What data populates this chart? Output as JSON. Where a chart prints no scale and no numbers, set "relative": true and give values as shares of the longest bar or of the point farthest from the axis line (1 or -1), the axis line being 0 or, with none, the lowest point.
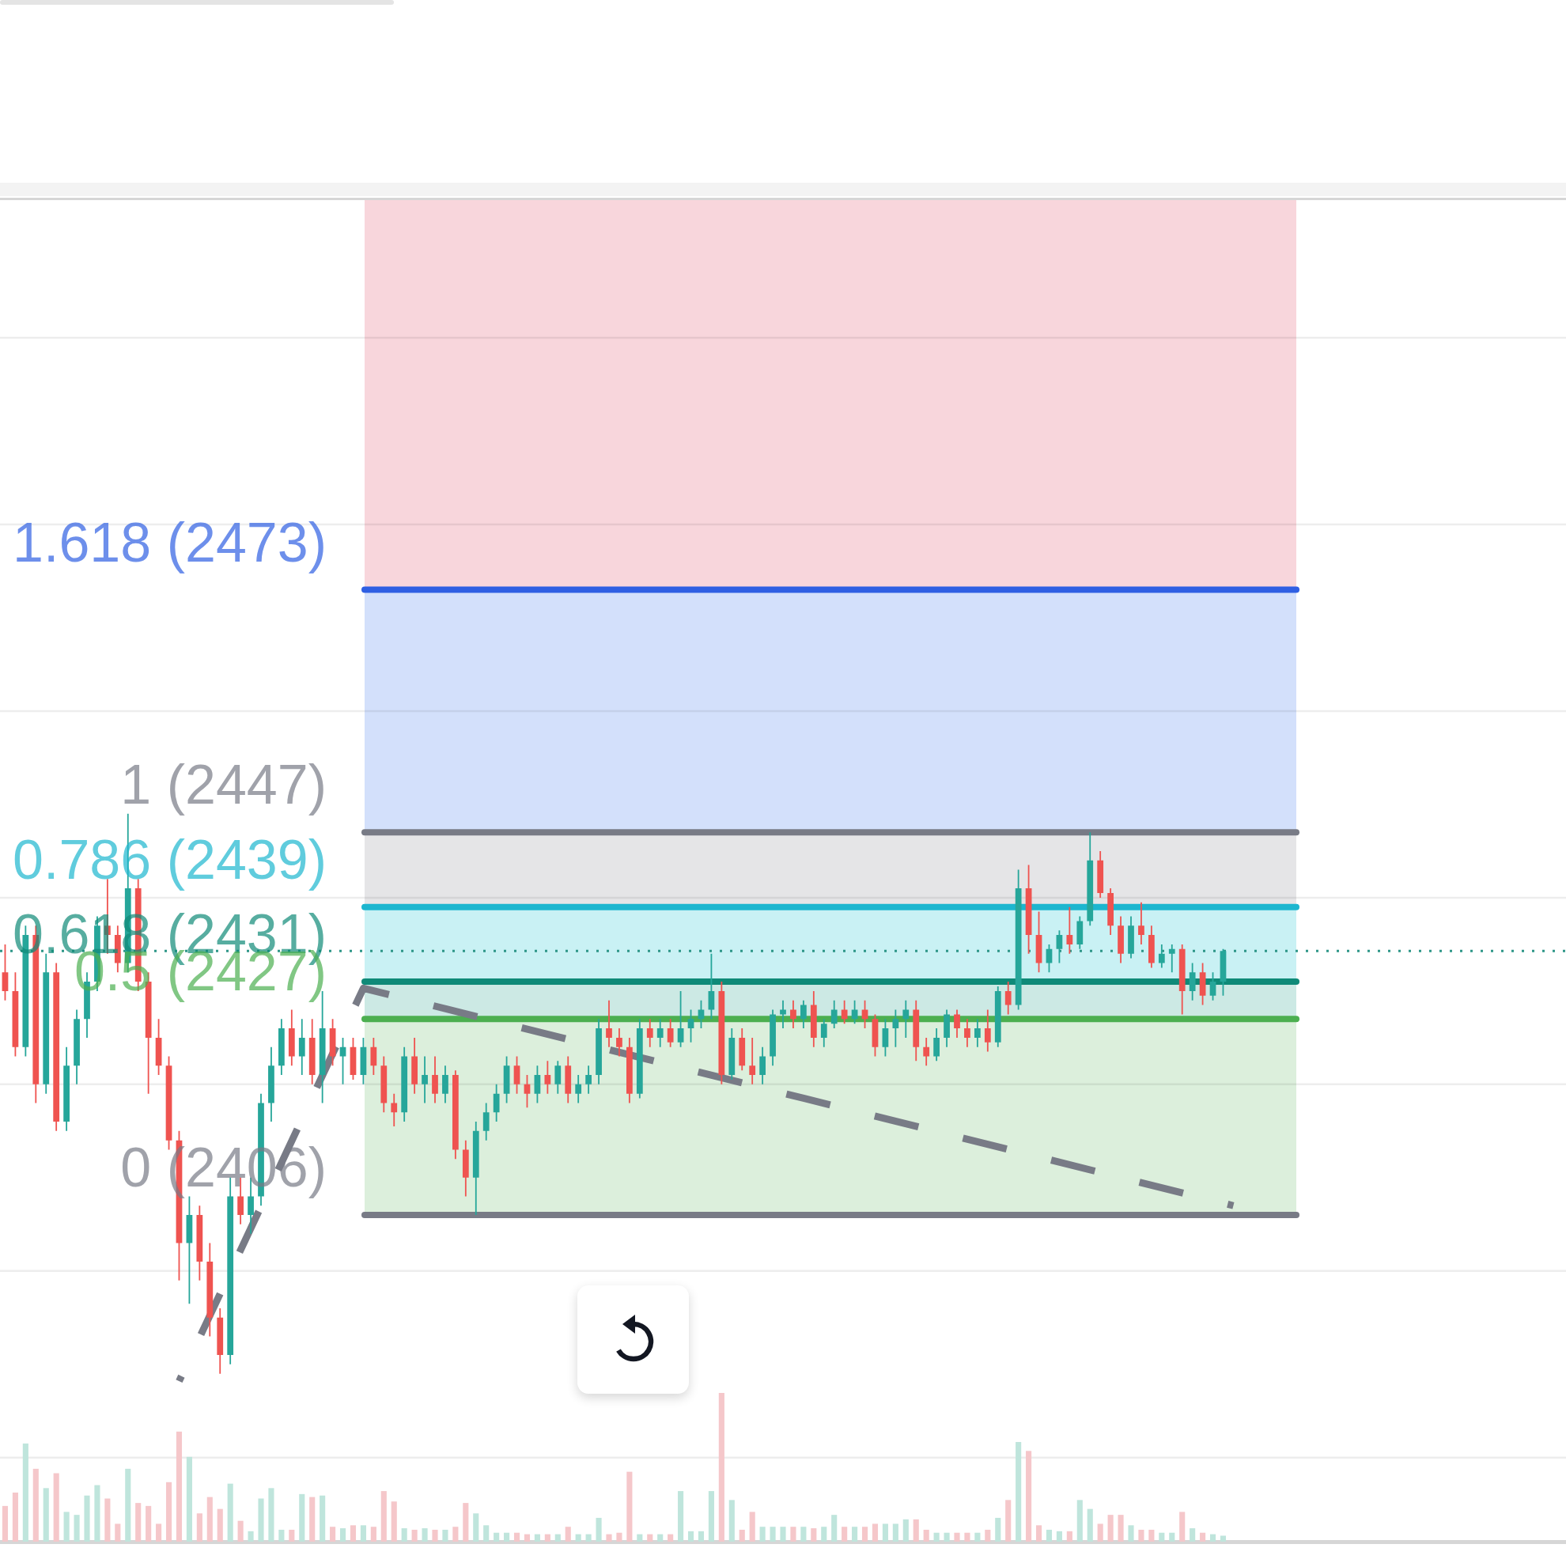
{
  "chart_data": [
    {
      "type": "candlestick",
      "categories": [
        null,
        null,
        null,
        null,
        null,
        null,
        null,
        null,
        null,
        null,
        null,
        null,
        null,
        null,
        null,
        null,
        null,
        null,
        null,
        null,
        null,
        null,
        null,
        null,
        null,
        null,
        null,
        null,
        null,
        null,
        null,
        null,
        null,
        null,
        null,
        null,
        null,
        null,
        null,
        null,
        null,
        null,
        null,
        null,
        null,
        null,
        null,
        null,
        null,
        null,
        null,
        null,
        null,
        null,
        null,
        null,
        null,
        null,
        null,
        null,
        null,
        null,
        null,
        null,
        null,
        null,
        null,
        null,
        null,
        null,
        null,
        null,
        null,
        null,
        null,
        null,
        null,
        null,
        null,
        null,
        null,
        null,
        null,
        null,
        null,
        null,
        null,
        null,
        null,
        null,
        null,
        null,
        null,
        null,
        null,
        null,
        null,
        null,
        null,
        null,
        null,
        null,
        null,
        null,
        null,
        null,
        null,
        null,
        null,
        null,
        null,
        null,
        null,
        null,
        null,
        null,
        null,
        null,
        null,
        null,
        null,
        null,
        null,
        null,
        null,
        null,
        null,
        null,
        null,
        null,
        null,
        null,
        null,
        null,
        null,
        null,
        null,
        null,
        null,
        null,
        null,
        null,
        null,
        null,
        null,
        null,
        null,
        null,
        null,
        null,
        null,
        null,
        null
      ],
      "ohlc": [
        [
          2432,
          2435,
          2429,
          2430
        ],
        [
          2430,
          2432,
          2423,
          2424
        ],
        [
          2424,
          2437,
          2423,
          2436
        ],
        [
          2436,
          2437,
          2418,
          2420
        ],
        [
          2420,
          2434,
          2419,
          2432
        ],
        [
          2432,
          2433,
          2415,
          2416
        ],
        [
          2416,
          2424,
          2415,
          2422
        ],
        [
          2422,
          2428,
          2420,
          2427
        ],
        [
          2427,
          2432,
          2425,
          2431
        ],
        [
          2431,
          2438,
          2430,
          2437
        ],
        [
          2437,
          2442,
          2434,
          2436
        ],
        [
          2436,
          2437,
          2432,
          2433
        ],
        [
          2433,
          2449,
          2432,
          2441
        ],
        [
          2441,
          2442,
          2430,
          2431
        ],
        [
          2431,
          2432,
          2419,
          2425
        ],
        [
          2425,
          2427,
          2421,
          2422
        ],
        [
          2422,
          2423,
          2413,
          2414
        ],
        [
          2414,
          2415,
          2399,
          2403
        ],
        [
          2403,
          2408,
          2396.5,
          2406
        ],
        [
          2406,
          2407,
          2399,
          2401
        ],
        [
          2401,
          2403,
          2393,
          2395
        ],
        [
          2395,
          2396,
          2389,
          2391
        ],
        [
          2391,
          2410,
          2390,
          2408
        ],
        [
          2408,
          2410,
          2405,
          2406
        ],
        [
          2406,
          2410,
          2404,
          2408
        ],
        [
          2408,
          2419,
          2407,
          2418
        ],
        [
          2418,
          2424,
          2416,
          2422
        ],
        [
          2422,
          2427,
          2421,
          2426
        ],
        [
          2426,
          2428,
          2422,
          2423
        ],
        [
          2423,
          2427,
          2421,
          2425
        ],
        [
          2425,
          2427,
          2420,
          2421
        ],
        [
          2421,
          2430,
          2418,
          2426
        ],
        [
          2426,
          2427,
          2422,
          2423
        ],
        [
          2423,
          2425,
          2420,
          2424
        ],
        [
          2424,
          2425,
          2420.5,
          2421
        ],
        [
          2421,
          2425,
          2420,
          2424
        ],
        [
          2424,
          2425,
          2421,
          2422
        ],
        [
          2422,
          2423,
          2417,
          2418
        ],
        [
          2418,
          2419,
          2415.5,
          2417
        ],
        [
          2417,
          2424,
          2416,
          2423
        ],
        [
          2423,
          2425,
          2419,
          2420
        ],
        [
          2420,
          2423,
          2418,
          2421
        ],
        [
          2421,
          2423,
          2418,
          2419
        ],
        [
          2419,
          2422,
          2418,
          2421
        ],
        [
          2421,
          2421.5,
          2412,
          2413
        ],
        [
          2413,
          2414,
          2408,
          2410
        ],
        [
          2410,
          2416,
          2406,
          2415
        ],
        [
          2415,
          2418,
          2414,
          2417
        ],
        [
          2417,
          2420,
          2416,
          2419
        ],
        [
          2419,
          2423,
          2418,
          2422
        ],
        [
          2422,
          2423,
          2419,
          2420
        ],
        [
          2420,
          2421,
          2417.5,
          2419
        ],
        [
          2419,
          2422,
          2418,
          2421
        ],
        [
          2421,
          2422.5,
          2419,
          2420
        ],
        [
          2420,
          2422.5,
          2419,
          2422
        ],
        [
          2422,
          2423,
          2418,
          2419
        ],
        [
          2419,
          2421,
          2418,
          2420
        ],
        [
          2420,
          2422,
          2419,
          2421
        ],
        [
          2421,
          2427,
          2420,
          2426
        ],
        [
          2426,
          2429,
          2424,
          2425
        ],
        [
          2425,
          2426,
          2423,
          2424
        ],
        [
          2424,
          2425,
          2418,
          2419
        ],
        [
          2419,
          2427,
          2418.5,
          2426
        ],
        [
          2426,
          2427,
          2424,
          2425
        ],
        [
          2425,
          2427,
          2424,
          2426
        ],
        [
          2426,
          2427,
          2424,
          2424.5
        ],
        [
          2424.5,
          2430,
          2424,
          2426
        ],
        [
          2426,
          2428,
          2424.5,
          2427
        ],
        [
          2427,
          2429,
          2426,
          2428
        ],
        [
          2428,
          2434,
          2427,
          2430
        ],
        [
          2430,
          2431,
          2420,
          2421
        ],
        [
          2421,
          2426,
          2420.5,
          2425
        ],
        [
          2425,
          2426,
          2421.5,
          2422
        ],
        [
          2422,
          2425,
          2420,
          2421
        ],
        [
          2421,
          2424,
          2420,
          2423
        ],
        [
          2423,
          2428,
          2422,
          2427.5
        ],
        [
          2427.5,
          2429,
          2426,
          2428
        ],
        [
          2428,
          2429,
          2426,
          2427
        ],
        [
          2427,
          2429,
          2426,
          2428.5
        ],
        [
          2428.5,
          2430,
          2424,
          2425
        ],
        [
          2425,
          2427,
          2424,
          2426.5
        ],
        [
          2426.5,
          2429,
          2426,
          2428
        ],
        [
          2428,
          2429,
          2426.5,
          2427
        ],
        [
          2427,
          2429,
          2426.5,
          2428
        ],
        [
          2428,
          2429,
          2426,
          2427
        ],
        [
          2427,
          2427.5,
          2423,
          2424
        ],
        [
          2424,
          2427,
          2423,
          2426
        ],
        [
          2426,
          2428,
          2424,
          2427
        ],
        [
          2427,
          2429,
          2425,
          2428
        ],
        [
          2428,
          2429,
          2422.5,
          2424
        ],
        [
          2424,
          2425,
          2422,
          2423
        ],
        [
          2423,
          2426,
          2422.5,
          2425
        ],
        [
          2425,
          2428,
          2424,
          2427.5
        ],
        [
          2427.5,
          2428,
          2425,
          2426
        ],
        [
          2426,
          2427,
          2424,
          2425
        ],
        [
          2425,
          2427,
          2424,
          2426
        ],
        [
          2426,
          2428,
          2423.5,
          2424.5
        ],
        [
          2424.5,
          2430.5,
          2424,
          2430
        ],
        [
          2430,
          2431,
          2427.5,
          2428.5
        ],
        [
          2428.5,
          2443,
          2428,
          2441
        ],
        [
          2441,
          2443.5,
          2434,
          2436
        ],
        [
          2436,
          2438.5,
          2432,
          2433
        ],
        [
          2433,
          2435,
          2432,
          2434.5
        ],
        [
          2434.5,
          2436.5,
          2433,
          2436
        ],
        [
          2436,
          2439,
          2434,
          2435
        ],
        [
          2435,
          2438,
          2434.5,
          2437.5
        ],
        [
          2437.5,
          2447,
          2437,
          2444
        ],
        [
          2444,
          2445,
          2440,
          2440.5
        ],
        [
          2440.5,
          2441,
          2436,
          2437
        ],
        [
          2437,
          2438,
          2433,
          2434
        ],
        [
          2434,
          2438,
          2433.5,
          2437
        ],
        [
          2437,
          2439.5,
          2435,
          2436
        ],
        [
          2436,
          2437,
          2432.5,
          2433
        ],
        [
          2433,
          2435,
          2432.5,
          2434
        ],
        [
          2434,
          2435,
          2432,
          2434.5
        ],
        [
          2434.5,
          2435,
          2427.5,
          2430
        ],
        [
          2430,
          2433,
          2429,
          2432
        ],
        [
          2432,
          2433,
          2428.5,
          2429.5
        ],
        [
          2429.5,
          2432,
          2429,
          2431
        ],
        [
          2431,
          2434.5,
          2429.5,
          2434.3
        ],
        null,
        null,
        null,
        null,
        null,
        null,
        null,
        null,
        null,
        null,
        null,
        null,
        null,
        null,
        null,
        null,
        null,
        null,
        null,
        null,
        null,
        null,
        null,
        null,
        null,
        null,
        null,
        null,
        null,
        null,
        null,
        null,
        null
      ],
      "colors": [
        "#ef5350",
        "#ef5350",
        "#26a69a",
        "#ef5350",
        "#26a69a",
        "#ef5350",
        "#26a69a",
        "#26a69a",
        "#26a69a",
        "#26a69a",
        "#ef5350",
        "#ef5350",
        "#26a69a",
        "#ef5350",
        "#ef5350",
        "#ef5350",
        "#ef5350",
        "#ef5350",
        "#26a69a",
        "#ef5350",
        "#ef5350",
        "#ef5350",
        "#26a69a",
        "#ef5350",
        "#26a69a",
        "#26a69a",
        "#26a69a",
        "#26a69a",
        "#ef5350",
        "#26a69a",
        "#ef5350",
        "#26a69a",
        "#ef5350",
        "#26a69a",
        "#ef5350",
        "#26a69a",
        "#ef5350",
        "#ef5350",
        "#ef5350",
        "#26a69a",
        "#ef5350",
        "#26a69a",
        "#ef5350",
        "#26a69a",
        "#ef5350",
        "#ef5350",
        "#26a69a",
        "#26a69a",
        "#26a69a",
        "#26a69a",
        "#ef5350",
        "#ef5350",
        "#26a69a",
        "#ef5350",
        "#26a69a",
        "#ef5350",
        "#26a69a",
        "#26a69a",
        "#26a69a",
        "#ef5350",
        "#ef5350",
        "#ef5350",
        "#26a69a",
        "#ef5350",
        "#26a69a",
        "#ef5350",
        "#26a69a",
        "#26a69a",
        "#26a69a",
        "#26a69a",
        "#ef5350",
        "#26a69a",
        "#ef5350",
        "#ef5350",
        "#26a69a",
        "#26a69a",
        "#26a69a",
        "#ef5350",
        "#26a69a",
        "#ef5350",
        "#26a69a",
        "#26a69a",
        "#ef5350",
        "#26a69a",
        "#ef5350",
        "#ef5350",
        "#26a69a",
        "#26a69a",
        "#26a69a",
        "#ef5350",
        "#ef5350",
        "#26a69a",
        "#26a69a",
        "#ef5350",
        "#ef5350",
        "#26a69a",
        "#ef5350",
        "#26a69a",
        "#ef5350",
        "#26a69a",
        "#ef5350",
        "#ef5350",
        "#26a69a",
        "#26a69a",
        "#ef5350",
        "#26a69a",
        "#26a69a",
        "#ef5350",
        "#ef5350",
        "#ef5350",
        "#26a69a",
        "#ef5350",
        "#ef5350",
        "#26a69a",
        "#26a69a",
        "#ef5350",
        "#26a69a",
        "#ef5350",
        "#26a69a",
        "#26a69a",
        null,
        null,
        null,
        null,
        null,
        null,
        null,
        null,
        null,
        null,
        null,
        null,
        null,
        null,
        null,
        null,
        null,
        null,
        null,
        null,
        null,
        null,
        null,
        null,
        null,
        null,
        null,
        null,
        null,
        null,
        null,
        null,
        null
      ],
      "series": [
        {
          "type": "line",
          "color": "#787b86",
          "line_style": "dashed",
          "values": [
            null,
            null,
            null,
            null,
            null,
            null,
            null,
            null,
            null,
            null,
            null,
            null,
            null,
            null,
            null,
            null,
            null,
            2388.2,
            null,
            null,
            null,
            null,
            null,
            null,
            null,
            null,
            null,
            null,
            null,
            null,
            null,
            null,
            null,
            null,
            null,
            2430.3,
            null,
            null,
            null,
            null,
            null,
            null,
            null,
            null,
            null,
            null,
            null,
            null,
            null,
            null,
            null,
            null,
            null,
            null,
            null,
            null,
            null,
            null,
            null,
            null,
            null,
            null,
            null,
            null,
            null,
            null,
            null,
            null,
            null,
            null,
            null,
            null,
            null,
            null,
            null,
            null,
            null,
            null,
            null,
            null,
            null,
            null,
            null,
            null,
            null,
            null,
            null,
            null,
            null,
            null,
            null,
            null,
            null,
            null,
            null,
            null,
            null,
            null,
            null,
            null,
            null,
            null,
            null,
            null,
            null,
            null,
            null,
            null,
            null,
            null,
            null,
            null,
            null,
            null,
            null,
            null,
            null,
            null,
            null,
            null,
            2407,
            null,
            null,
            null,
            null,
            null,
            null,
            null,
            null,
            null,
            null,
            null,
            null,
            null,
            null,
            null,
            null,
            null,
            null,
            null,
            null,
            null,
            null,
            null,
            null,
            null,
            null,
            null,
            null,
            null,
            null,
            null,
            null
          ]
        }
      ],
      "ylim": [
        2371,
        2515
      ],
      "yticks": [
        {
          "value": 2380,
          "label": null
        },
        {
          "value": 2400,
          "label": null
        },
        {
          "value": 2420,
          "label": null
        },
        {
          "value": 2440,
          "label": null
        },
        {
          "value": 2460,
          "label": null
        },
        {
          "value": 2480,
          "label": null
        },
        {
          "value": 2500,
          "label": null
        }
      ],
      "grid": "y",
      "bands": [
        {
          "axis": "y",
          "from": 2473,
          "to": 2515,
          "color": "#f8d6dc"
        },
        {
          "axis": "y",
          "from": 2447,
          "to": 2473,
          "color": "#d3e0fb"
        },
        {
          "axis": "y",
          "from": 2439,
          "to": 2447,
          "color": "#e5e5e7"
        },
        {
          "axis": "y",
          "from": 2431,
          "to": 2439,
          "color": "#c9f1f4"
        },
        {
          "axis": "y",
          "from": 2427,
          "to": 2431,
          "color": "#cce9e4"
        },
        {
          "axis": "y",
          "from": 2406,
          "to": 2427,
          "color": "#dcefdc"
        }
      ],
      "ref_lines": [
        {
          "axis": "y",
          "value": 2473,
          "label": "1.618 (2473)",
          "color": "#2f5fe3"
        },
        {
          "axis": "y",
          "value": 2447,
          "label": "1 (2447)",
          "color": "#787b86"
        },
        {
          "axis": "y",
          "value": 2439,
          "label": "0.786 (2439)",
          "color": "#1db6cf"
        },
        {
          "axis": "y",
          "value": 2431,
          "label": "0.618 (2431)",
          "color": "#0f8a78"
        },
        {
          "axis": "y",
          "value": 2427,
          "label": "0.5 (2427)",
          "color": "#4caf50"
        },
        {
          "axis": "y",
          "value": 2406,
          "label": "0 (2406)",
          "color": "#787b86"
        },
        {
          "axis": "y",
          "value": 2434.3,
          "color": "#2e9688",
          "line_style": "dotted"
        }
      ]
    },
    {
      "type": "bar",
      "relative": true,
      "categories": [
        null,
        null,
        null,
        null,
        null,
        null,
        null,
        null,
        null,
        null,
        null,
        null,
        null,
        null,
        null,
        null,
        null,
        null,
        null,
        null,
        null,
        null,
        null,
        null,
        null,
        null,
        null,
        null,
        null,
        null,
        null,
        null,
        null,
        null,
        null,
        null,
        null,
        null,
        null,
        null,
        null,
        null,
        null,
        null,
        null,
        null,
        null,
        null,
        null,
        null,
        null,
        null,
        null,
        null,
        null,
        null,
        null,
        null,
        null,
        null,
        null,
        null,
        null,
        null,
        null,
        null,
        null,
        null,
        null,
        null,
        null,
        null,
        null,
        null,
        null,
        null,
        null,
        null,
        null,
        null,
        null,
        null,
        null,
        null,
        null,
        null,
        null,
        null,
        null,
        null,
        null,
        null,
        null,
        null,
        null,
        null,
        null,
        null,
        null,
        null,
        null,
        null,
        null,
        null,
        null,
        null,
        null,
        null,
        null,
        null,
        null,
        null,
        null,
        null,
        null,
        null,
        null,
        null,
        null,
        null,
        null,
        null,
        null,
        null,
        null,
        null,
        null,
        null,
        null,
        null,
        null,
        null,
        null,
        null,
        null,
        null,
        null,
        null,
        null,
        null,
        null,
        null,
        null,
        null,
        null,
        null,
        null,
        null,
        null,
        null,
        null,
        null,
        null
      ],
      "values": [
        0.24,
        0.33,
        0.66,
        0.49,
        0.36,
        0.46,
        0.2,
        0.18,
        0.31,
        0.38,
        0.29,
        0.12,
        0.49,
        0.26,
        0.24,
        0.12,
        0.4,
        0.74,
        0.57,
        0.19,
        0.3,
        0.22,
        0.39,
        0.14,
        0.07,
        0.29,
        0.36,
        0.08,
        0.08,
        0.32,
        0.3,
        0.31,
        0.1,
        0.09,
        0.11,
        0.11,
        0.1,
        0.34,
        0.27,
        0.09,
        0.08,
        0.09,
        0.08,
        0.08,
        0.1,
        0.26,
        0.19,
        0.11,
        0.06,
        0.06,
        0.06,
        0.05,
        0.05,
        0.05,
        0.05,
        0.1,
        0.05,
        0.05,
        0.16,
        0.05,
        0.06,
        0.47,
        0.05,
        0.05,
        0.05,
        0.05,
        0.34,
        0.07,
        0.07,
        0.34,
        1,
        0.28,
        0.08,
        0.2,
        0.1,
        0.1,
        0.1,
        0.1,
        0.1,
        0.09,
        0.1,
        0.18,
        0.1,
        0.1,
        0.1,
        0.12,
        0.12,
        0.12,
        0.15,
        0.15,
        0.08,
        0.06,
        0.06,
        0.06,
        0.06,
        0.06,
        0.08,
        0.16,
        0.28,
        0.67,
        0.61,
        0.11,
        0.08,
        0.07,
        0.07,
        0.28,
        0.22,
        0.12,
        0.18,
        0.18,
        0.11,
        0.08,
        0.08,
        0.06,
        0.06,
        0.2,
        0.09,
        0.06,
        0.05,
        0.04,
        null,
        null,
        null,
        null,
        null,
        null,
        null,
        null,
        null,
        null,
        null,
        null,
        null,
        null,
        null,
        null,
        null,
        null,
        null,
        null,
        null,
        null,
        null,
        null,
        null,
        null,
        null,
        null,
        null,
        null,
        null,
        null,
        null
      ],
      "colors": [
        "#f5c7ca",
        "#f5c7ca",
        "#bfe5dc",
        "#f5c7ca",
        "#bfe5dc",
        "#f5c7ca",
        "#bfe5dc",
        "#bfe5dc",
        "#bfe5dc",
        "#bfe5dc",
        "#f5c7ca",
        "#f5c7ca",
        "#bfe5dc",
        "#f5c7ca",
        "#f5c7ca",
        "#f5c7ca",
        "#f5c7ca",
        "#f5c7ca",
        "#bfe5dc",
        "#f5c7ca",
        "#f5c7ca",
        "#f5c7ca",
        "#bfe5dc",
        "#f5c7ca",
        "#bfe5dc",
        "#bfe5dc",
        "#bfe5dc",
        "#bfe5dc",
        "#f5c7ca",
        "#bfe5dc",
        "#f5c7ca",
        "#bfe5dc",
        "#f5c7ca",
        "#bfe5dc",
        "#f5c7ca",
        "#bfe5dc",
        "#f5c7ca",
        "#f5c7ca",
        "#f5c7ca",
        "#bfe5dc",
        "#f5c7ca",
        "#bfe5dc",
        "#f5c7ca",
        "#bfe5dc",
        "#f5c7ca",
        "#f5c7ca",
        "#bfe5dc",
        "#bfe5dc",
        "#bfe5dc",
        "#bfe5dc",
        "#f5c7ca",
        "#f5c7ca",
        "#bfe5dc",
        "#f5c7ca",
        "#bfe5dc",
        "#f5c7ca",
        "#bfe5dc",
        "#bfe5dc",
        "#bfe5dc",
        "#f5c7ca",
        "#f5c7ca",
        "#f5c7ca",
        "#bfe5dc",
        "#f5c7ca",
        "#bfe5dc",
        "#f5c7ca",
        "#bfe5dc",
        "#bfe5dc",
        "#bfe5dc",
        "#bfe5dc",
        "#f5c7ca",
        "#bfe5dc",
        "#f5c7ca",
        "#f5c7ca",
        "#bfe5dc",
        "#bfe5dc",
        "#bfe5dc",
        "#f5c7ca",
        "#bfe5dc",
        "#f5c7ca",
        "#bfe5dc",
        "#bfe5dc",
        "#f5c7ca",
        "#bfe5dc",
        "#f5c7ca",
        "#f5c7ca",
        "#bfe5dc",
        "#bfe5dc",
        "#bfe5dc",
        "#f5c7ca",
        "#f5c7ca",
        "#bfe5dc",
        "#bfe5dc",
        "#f5c7ca",
        "#f5c7ca",
        "#bfe5dc",
        "#f5c7ca",
        "#bfe5dc",
        "#f5c7ca",
        "#bfe5dc",
        "#f5c7ca",
        "#f5c7ca",
        "#bfe5dc",
        "#bfe5dc",
        "#f5c7ca",
        "#bfe5dc",
        "#bfe5dc",
        "#f5c7ca",
        "#f5c7ca",
        "#f5c7ca",
        "#bfe5dc",
        "#f5c7ca",
        "#f5c7ca",
        "#bfe5dc",
        "#bfe5dc",
        "#f5c7ca",
        "#bfe5dc",
        "#f5c7ca",
        "#bfe5dc",
        "#bfe5dc",
        null,
        null,
        null,
        null,
        null,
        null,
        null,
        null,
        null,
        null,
        null,
        null,
        null,
        null,
        null,
        null,
        null,
        null,
        null,
        null,
        null,
        null,
        null,
        null,
        null,
        null,
        null,
        null,
        null,
        null,
        null,
        null,
        null
      ]
    }
  ]
}
